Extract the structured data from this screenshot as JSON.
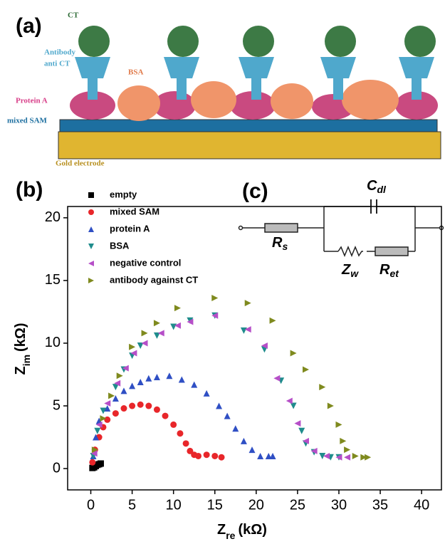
{
  "schematic": {
    "panel_label": "(a)",
    "labels": {
      "ct": "CT",
      "antibody": [
        "Antibody",
        "anti CT"
      ],
      "bsa": "BSA",
      "protein_a": "Protein A",
      "sam": "mixed SAM",
      "gold": "Gold electrode"
    }
  },
  "circuit": {
    "panel_label": "(c)",
    "cdl": {
      "main": "C",
      "sub": "dl"
    },
    "rs": {
      "main": "R",
      "sub": "s"
    },
    "zw": {
      "main": "Z",
      "sub": "w"
    },
    "ret": {
      "main": "R",
      "sub": "et"
    }
  },
  "chart_data": {
    "type": "scatter",
    "panel_label": "(b)",
    "x_label": {
      "main": "Z",
      "sub": "re",
      "unit": "(kΩ)"
    },
    "y_label": {
      "main": "Z",
      "sub": "im",
      "unit": "(kΩ)"
    },
    "xlim": [
      -2.8,
      42.4
    ],
    "ylim": [
      -1.7,
      20.9
    ],
    "xticks": [
      0,
      5,
      10,
      15,
      20,
      25,
      30,
      35,
      40
    ],
    "yticks": [
      0,
      5,
      10,
      15,
      20
    ],
    "legend": "top-left",
    "series": [
      {
        "name": "empty",
        "color": "#000000",
        "marker": "square",
        "x": [
          0.2,
          0.4,
          0.6,
          0.8,
          1.0,
          1.2
        ],
        "y": [
          0.05,
          0.1,
          0.2,
          0.3,
          0.35,
          0.4
        ]
      },
      {
        "name": "mixed SAM",
        "color": "#e8262a",
        "marker": "circle",
        "x": [
          0.2,
          0.5,
          1,
          1.5,
          2,
          3,
          4,
          5,
          6,
          7,
          8,
          9,
          10,
          10.8,
          11.5,
          12,
          12.5,
          13,
          14,
          15,
          15.8
        ],
        "y": [
          0.5,
          1.5,
          2.5,
          3.3,
          3.9,
          4.4,
          4.8,
          5.0,
          5.1,
          5.0,
          4.7,
          4.2,
          3.5,
          2.8,
          2.0,
          1.4,
          1.1,
          1.0,
          1.1,
          1.0,
          0.9
        ]
      },
      {
        "name": "protein A",
        "color": "#2f4fc4",
        "marker": "triangle-up",
        "x": [
          0.3,
          0.6,
          1,
          2,
          3,
          4,
          5,
          6,
          7,
          8,
          9.5,
          11,
          12.5,
          14,
          15.5,
          16.5,
          17.5,
          18.5,
          19.5,
          20.5,
          21.5,
          22
        ],
        "y": [
          1.0,
          2.5,
          3.8,
          4.8,
          5.6,
          6.2,
          6.6,
          6.9,
          7.2,
          7.3,
          7.4,
          7.1,
          6.7,
          6.0,
          5.0,
          4.2,
          3.2,
          2.2,
          1.5,
          1.0,
          1.0,
          1.0
        ]
      },
      {
        "name": "BSA",
        "color": "#1f8c8c",
        "marker": "triangle-down",
        "x": [
          0.3,
          0.8,
          1.5,
          3,
          4,
          5,
          6,
          8,
          10,
          12,
          15,
          18.5,
          21,
          23,
          24.5,
          25.5,
          26,
          27,
          28,
          29,
          30
        ],
        "y": [
          1.0,
          3.0,
          4.6,
          6.5,
          7.9,
          9.0,
          9.8,
          10.6,
          11.3,
          11.8,
          12.2,
          11.0,
          9.5,
          7.0,
          5.0,
          3.0,
          2.0,
          1.3,
          1.0,
          0.9,
          0.9
        ]
      },
      {
        "name": "negative control",
        "color": "#b64fc8",
        "marker": "triangle-left",
        "x": [
          0.4,
          1,
          2,
          3.2,
          4.2,
          5.2,
          6.5,
          8.5,
          10.5,
          12,
          15,
          19,
          21,
          22.5,
          24,
          25,
          26,
          27,
          28.5,
          30,
          31
        ],
        "y": [
          1.2,
          3.5,
          5.2,
          6.8,
          8.0,
          9.2,
          10.0,
          10.8,
          11.4,
          11.7,
          12.2,
          11.1,
          9.8,
          7.2,
          5.4,
          3.6,
          2.2,
          1.4,
          1.0,
          0.9,
          0.9
        ]
      },
      {
        "name": "antibody against CT",
        "color": "#7f8a1e",
        "marker": "triangle-right",
        "x": [
          0.5,
          1.5,
          2.5,
          3.5,
          5,
          6.5,
          8,
          10.5,
          15,
          19,
          22,
          24.5,
          26,
          28,
          29,
          30,
          30.5,
          31,
          32,
          33,
          33.5
        ],
        "y": [
          1.5,
          4.0,
          5.8,
          7.4,
          9.7,
          10.8,
          11.6,
          12.8,
          13.6,
          13.2,
          11.8,
          9.2,
          7.9,
          6.5,
          5.0,
          3.5,
          2.2,
          1.5,
          1.0,
          0.9,
          0.9
        ]
      }
    ]
  }
}
